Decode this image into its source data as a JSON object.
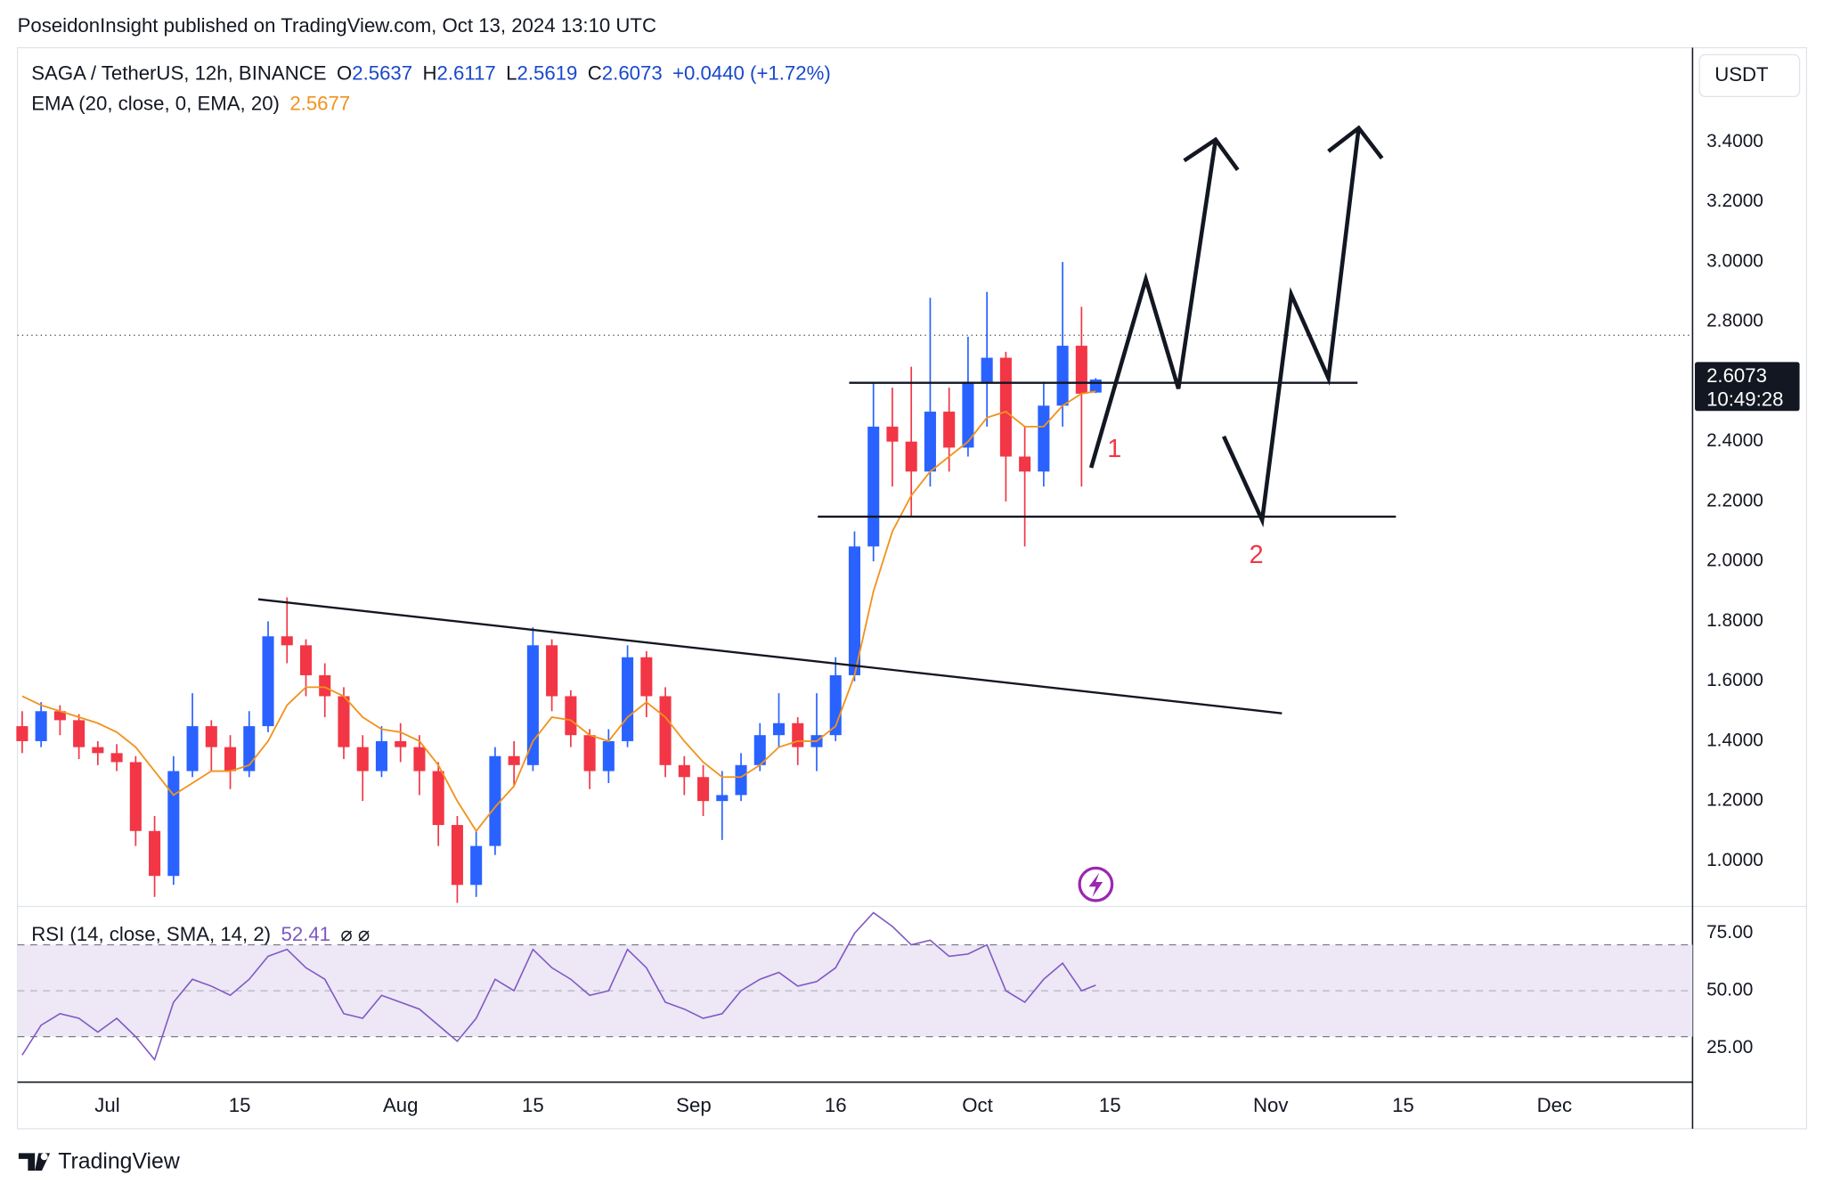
{
  "header": "PoseidonInsight published on TradingView.com, Oct 13, 2024 13:10 UTC",
  "footer": "TradingView",
  "chart_data": [
    {
      "type": "candlestick",
      "title": "SAGA / TetherUS, 12h, BINANCE",
      "ohlc_labels": [
        "O",
        "H",
        "L",
        "C"
      ],
      "change_label": "+0.0440 (+1.72%)",
      "axis_unit": "USDT",
      "countdown": "10:49:28",
      "annotations": [
        "1",
        "2"
      ],
      "up_color": "#2962ff",
      "down_color": "#f23645",
      "x": [
        -9,
        -7,
        -5,
        -3,
        -1,
        1,
        3,
        5,
        7,
        9,
        11,
        13,
        15,
        17,
        19,
        21,
        23,
        25,
        27,
        29,
        31,
        33,
        35,
        37,
        39,
        41,
        43,
        45,
        47,
        49,
        51,
        53,
        55,
        57,
        59,
        61,
        63,
        65,
        67,
        69,
        71,
        73,
        75,
        77,
        79,
        81,
        83,
        85,
        87,
        89,
        91,
        93,
        95,
        97,
        99,
        101,
        103,
        104.5
      ],
      "open": [
        1.45,
        1.4,
        1.5,
        1.47,
        1.38,
        1.36,
        1.33,
        1.1,
        0.95,
        1.3,
        1.45,
        1.38,
        1.3,
        1.45,
        1.75,
        1.72,
        1.62,
        1.55,
        1.38,
        1.3,
        1.4,
        1.38,
        1.3,
        1.12,
        0.92,
        1.05,
        1.35,
        1.32,
        1.72,
        1.55,
        1.42,
        1.3,
        1.4,
        1.68,
        1.55,
        1.32,
        1.28,
        1.2,
        1.22,
        1.32,
        1.42,
        1.46,
        1.38,
        1.42,
        1.62,
        2.05,
        2.45,
        2.4,
        2.3,
        2.5,
        2.38,
        2.6,
        2.68,
        2.35,
        2.3,
        2.52,
        2.72,
        2.5637
      ],
      "high": [
        1.5,
        1.53,
        1.52,
        1.49,
        1.4,
        1.39,
        1.35,
        1.15,
        1.35,
        1.56,
        1.47,
        1.42,
        1.5,
        1.8,
        1.88,
        1.74,
        1.66,
        1.58,
        1.42,
        1.45,
        1.46,
        1.42,
        1.33,
        1.15,
        1.1,
        1.38,
        1.4,
        1.78,
        1.74,
        1.57,
        1.44,
        1.44,
        1.72,
        1.7,
        1.58,
        1.35,
        1.32,
        1.3,
        1.36,
        1.46,
        1.56,
        1.48,
        1.56,
        1.68,
        2.1,
        2.6,
        2.58,
        2.65,
        2.88,
        2.58,
        2.75,
        2.9,
        2.7,
        2.45,
        2.6,
        3.0,
        2.85,
        2.6117
      ],
      "low": [
        1.36,
        1.38,
        1.42,
        1.34,
        1.32,
        1.3,
        1.05,
        0.88,
        0.92,
        1.28,
        1.3,
        1.24,
        1.28,
        1.43,
        1.66,
        1.55,
        1.48,
        1.34,
        1.2,
        1.28,
        1.33,
        1.22,
        1.05,
        0.86,
        0.88,
        1.02,
        1.25,
        1.3,
        1.5,
        1.38,
        1.24,
        1.26,
        1.38,
        1.48,
        1.28,
        1.22,
        1.15,
        1.07,
        1.2,
        1.3,
        1.38,
        1.32,
        1.3,
        1.4,
        1.6,
        2.0,
        2.25,
        2.15,
        2.25,
        2.3,
        2.35,
        2.45,
        2.2,
        2.05,
        2.25,
        2.45,
        2.25,
        2.5619
      ],
      "close": [
        1.4,
        1.5,
        1.47,
        1.38,
        1.36,
        1.33,
        1.1,
        0.95,
        1.3,
        1.45,
        1.38,
        1.3,
        1.45,
        1.75,
        1.72,
        1.62,
        1.55,
        1.38,
        1.3,
        1.4,
        1.38,
        1.3,
        1.12,
        0.92,
        1.05,
        1.35,
        1.32,
        1.72,
        1.55,
        1.42,
        1.3,
        1.4,
        1.68,
        1.55,
        1.32,
        1.28,
        1.2,
        1.22,
        1.32,
        1.42,
        1.46,
        1.38,
        1.42,
        1.62,
        2.05,
        2.45,
        2.4,
        2.3,
        2.5,
        2.38,
        2.6,
        2.68,
        2.35,
        2.3,
        2.52,
        2.72,
        2.56,
        2.6073
      ],
      "ema": {
        "name": "EMA (20, close, 0, EMA, 20)",
        "color": "#f2921b",
        "values": [
          1.55,
          1.52,
          1.5,
          1.48,
          1.46,
          1.43,
          1.38,
          1.3,
          1.22,
          1.26,
          1.3,
          1.3,
          1.32,
          1.4,
          1.52,
          1.58,
          1.58,
          1.55,
          1.48,
          1.44,
          1.43,
          1.4,
          1.32,
          1.2,
          1.1,
          1.18,
          1.25,
          1.4,
          1.48,
          1.47,
          1.42,
          1.4,
          1.48,
          1.53,
          1.48,
          1.4,
          1.33,
          1.28,
          1.28,
          1.32,
          1.38,
          1.4,
          1.4,
          1.45,
          1.62,
          1.9,
          2.1,
          2.22,
          2.3,
          2.35,
          2.4,
          2.48,
          2.5,
          2.45,
          2.45,
          2.52,
          2.56,
          2.5677
        ]
      },
      "reference_line": 2.755,
      "xlim": [
        -9.5,
        167.6
      ],
      "xticks": [
        {
          "value": 0,
          "label": "Jul"
        },
        {
          "value": 14,
          "label": "15"
        },
        {
          "value": 31,
          "label": "Aug"
        },
        {
          "value": 45,
          "label": "15"
        },
        {
          "value": 62,
          "label": "Sep"
        },
        {
          "value": 77,
          "label": "16"
        },
        {
          "value": 92,
          "label": "Oct"
        },
        {
          "value": 106,
          "label": "15"
        },
        {
          "value": 123,
          "label": "Nov"
        },
        {
          "value": 137,
          "label": "15"
        },
        {
          "value": 153,
          "label": "Dec"
        }
      ],
      "ylim": [
        0.852,
        3.715
      ],
      "yticks": [
        {
          "value": 1.0,
          "label": "1.0000"
        },
        {
          "value": 1.2,
          "label": "1.2000"
        },
        {
          "value": 1.4,
          "label": "1.4000"
        },
        {
          "value": 1.6,
          "label": "1.6000"
        },
        {
          "value": 1.8,
          "label": "1.8000"
        },
        {
          "value": 2.0,
          "label": "2.0000"
        },
        {
          "value": 2.2,
          "label": "2.2000"
        },
        {
          "value": 2.4,
          "label": "2.4000"
        },
        {
          "value": 2.6,
          "label": "2.6000"
        },
        {
          "value": 2.8,
          "label": "2.8000"
        },
        {
          "value": 3.0,
          "label": "3.0000"
        },
        {
          "value": 3.2,
          "label": "3.2000"
        },
        {
          "value": 3.4,
          "label": "3.4000"
        }
      ]
    },
    {
      "type": "line",
      "title": "RSI (14, close, SMA, 14, 2)",
      "symbols": "⌀ ⌀",
      "color": "#7e57c2",
      "band_color": "#ede7f6",
      "band": [
        30,
        70
      ],
      "midline": 50,
      "x": [
        -9,
        -7,
        -5,
        -3,
        -1,
        1,
        3,
        5,
        7,
        9,
        11,
        13,
        15,
        17,
        19,
        21,
        23,
        25,
        27,
        29,
        31,
        33,
        35,
        37,
        39,
        41,
        43,
        45,
        47,
        49,
        51,
        53,
        55,
        57,
        59,
        61,
        63,
        65,
        67,
        69,
        71,
        73,
        75,
        77,
        79,
        81,
        83,
        85,
        87,
        89,
        91,
        93,
        95,
        97,
        99,
        101,
        103,
        104.5
      ],
      "values": [
        22,
        35,
        40,
        38,
        32,
        38,
        30,
        20,
        45,
        55,
        52,
        48,
        55,
        65,
        68,
        60,
        55,
        40,
        38,
        48,
        45,
        42,
        35,
        28,
        38,
        55,
        50,
        68,
        60,
        55,
        48,
        50,
        68,
        60,
        45,
        42,
        38,
        40,
        50,
        55,
        58,
        52,
        54,
        60,
        75,
        84,
        78,
        70,
        72,
        65,
        66,
        70,
        50,
        45,
        55,
        62,
        50,
        52.41
      ],
      "xlim": [
        -9.5,
        167.6
      ],
      "ylim": [
        10.2,
        86.7
      ],
      "yticks": [
        {
          "value": 25,
          "label": "25.00"
        },
        {
          "value": 50,
          "label": "50.00"
        },
        {
          "value": 75,
          "label": "75.00"
        }
      ]
    }
  ]
}
